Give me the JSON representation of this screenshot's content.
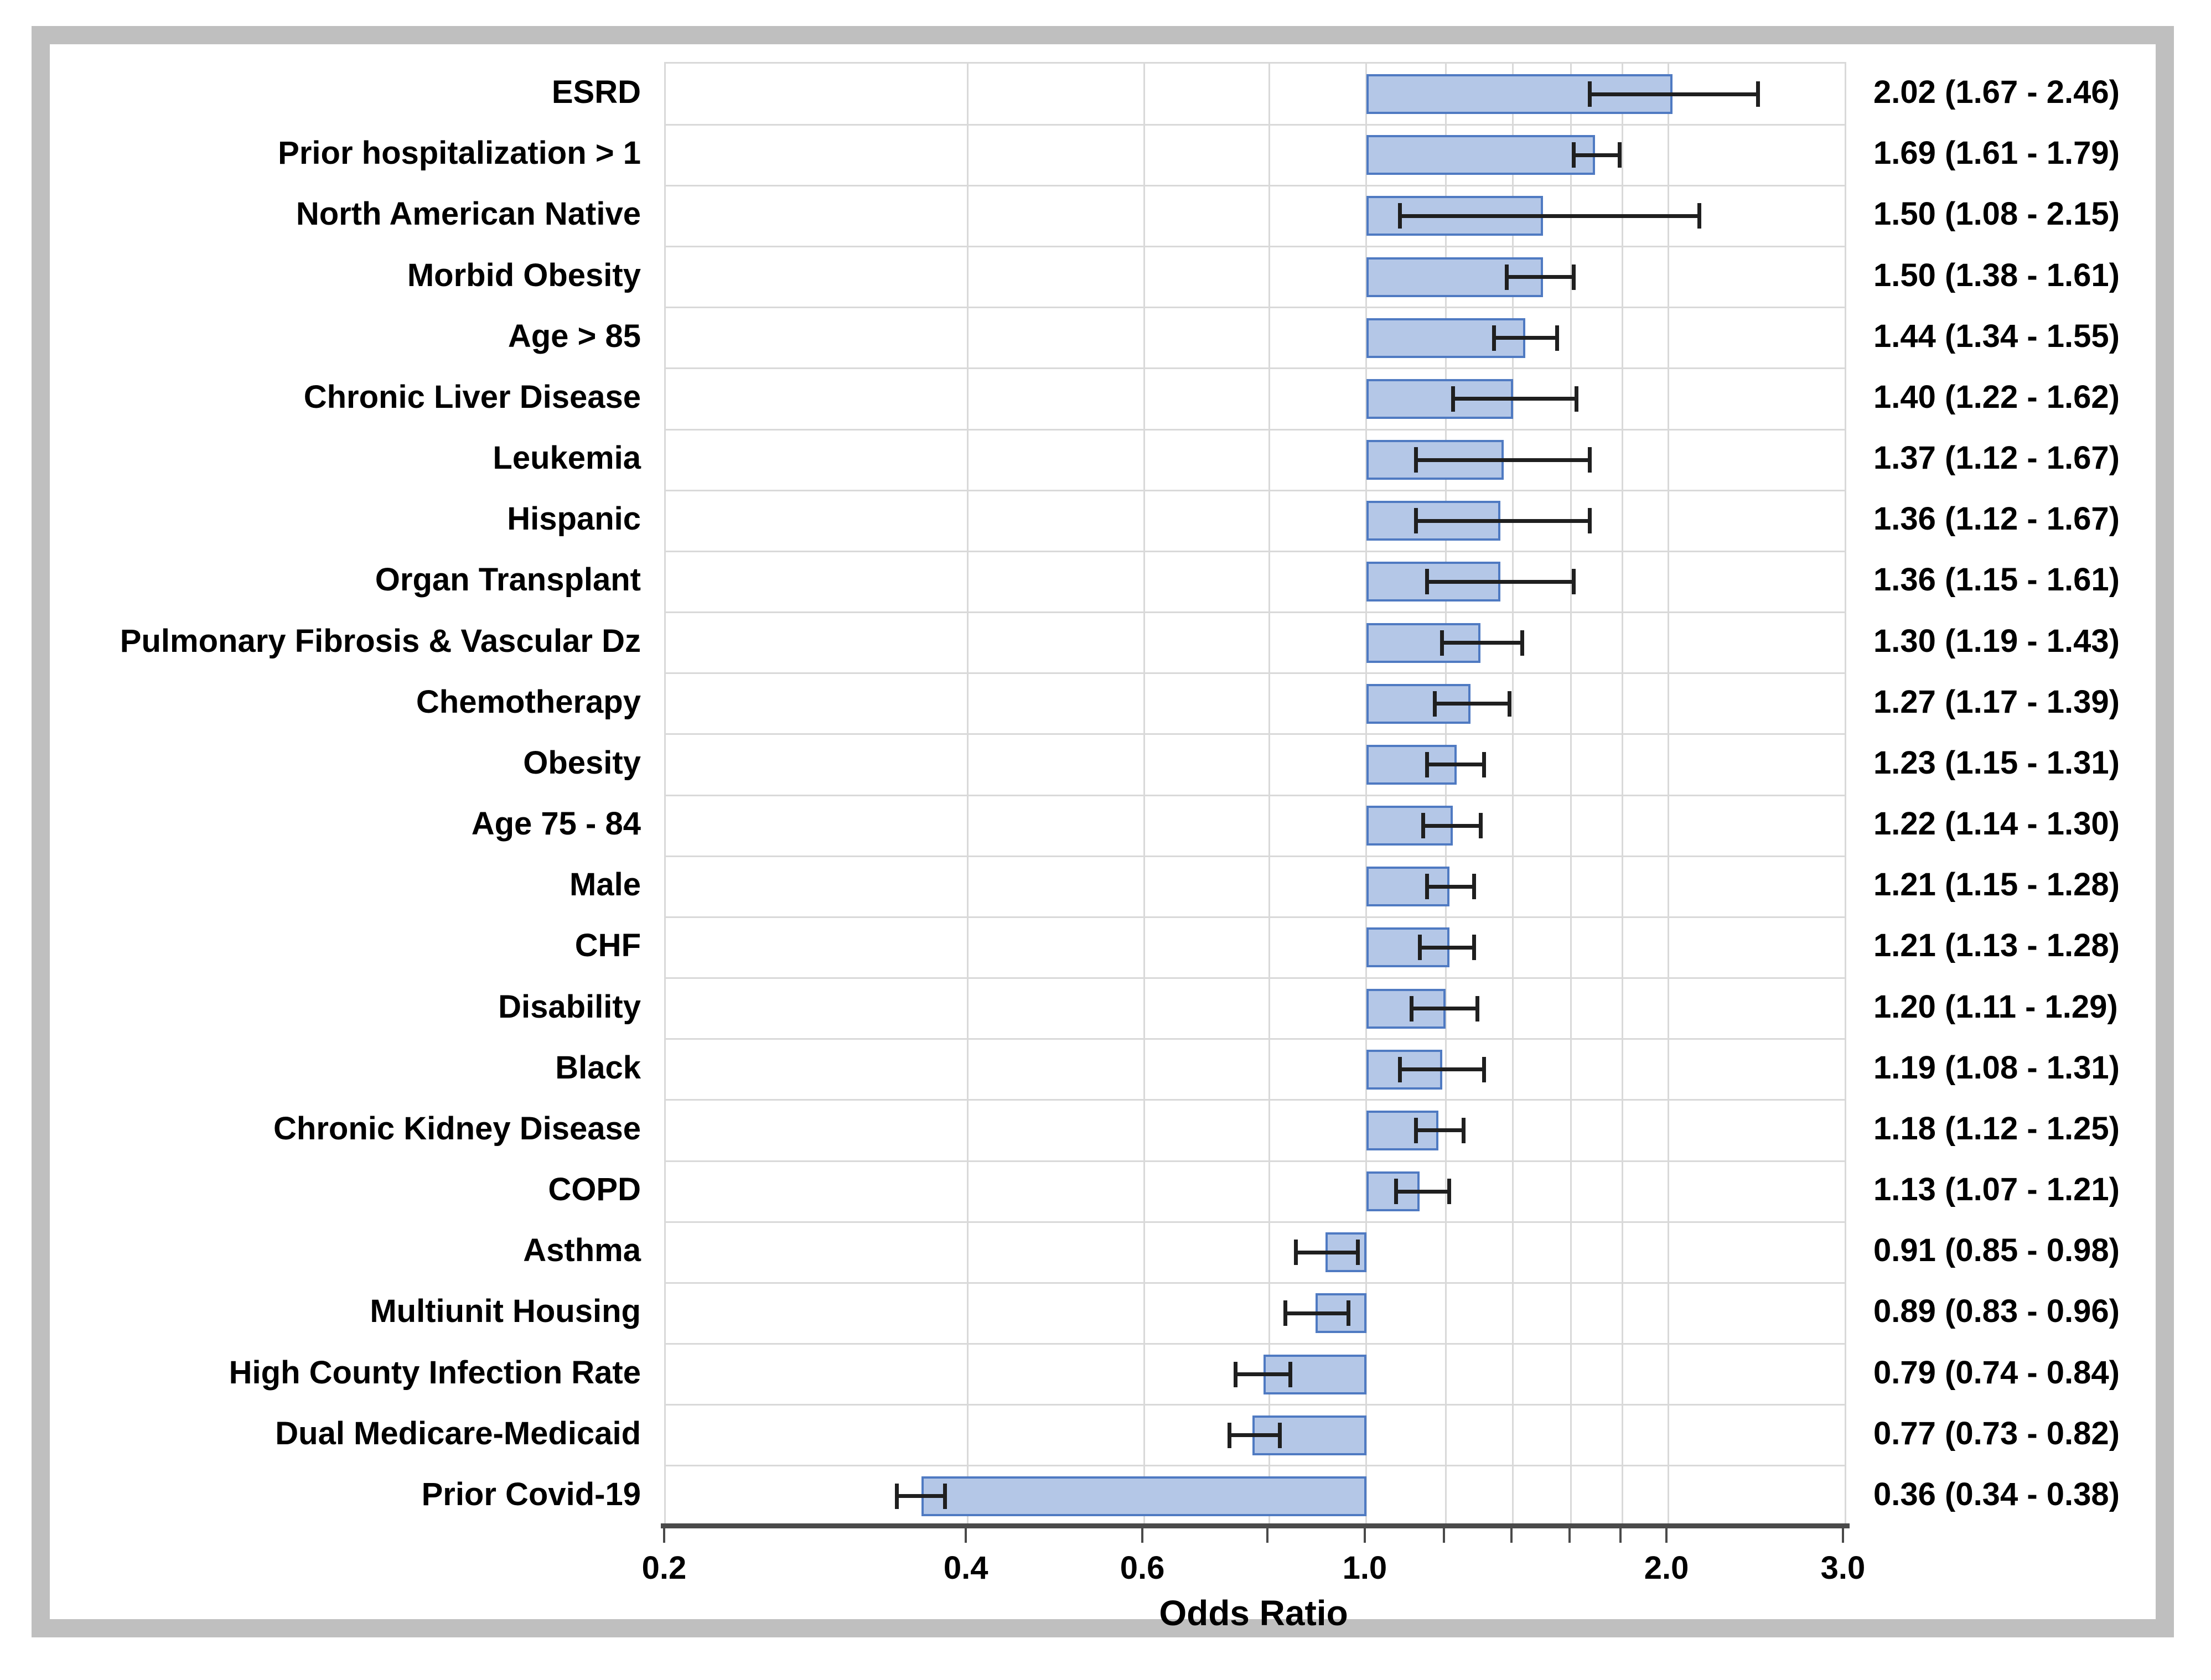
{
  "figure": {
    "background": "#ffffff",
    "frame_color": "#bfbfbf"
  },
  "colors": {
    "bar_fill": "#b4c7e7",
    "bar_border": "#4f7ac2",
    "error_bar": "#1f1f1f",
    "gridline": "#d9d9d9",
    "axis_line": "#4a4a4a",
    "text": "#000000"
  },
  "chart_data": {
    "type": "bar",
    "orientation": "horizontal",
    "title": "",
    "xlabel": "Odds Ratio",
    "x_scale": "log10",
    "xlim": [
      0.2,
      3.0
    ],
    "baseline": 1.0,
    "grid": "on",
    "legend": "none",
    "gridline_values": [
      0.4,
      0.6,
      0.8,
      1.0,
      1.2,
      1.4,
      1.6,
      1.8,
      2.0
    ],
    "axis_tick_values": [
      0.2,
      0.4,
      0.6,
      0.8,
      1.0,
      1.2,
      1.4,
      1.6,
      1.8,
      2.0,
      3.0
    ],
    "labeled_ticks": [
      {
        "value": 0.2,
        "label": "0.2"
      },
      {
        "value": 0.4,
        "label": "0.4"
      },
      {
        "value": 0.6,
        "label": "0.6"
      },
      {
        "value": 1.0,
        "label": "1.0"
      },
      {
        "value": 2.0,
        "label": "2.0"
      },
      {
        "value": 3.0,
        "label": "3.0"
      }
    ],
    "rows": [
      {
        "label": "ESRD",
        "or": 2.02,
        "ci_low": 1.67,
        "ci_high": 2.46,
        "value_text": "2.02 (1.67 - 2.46)"
      },
      {
        "label": "Prior hospitalization > 1",
        "or": 1.69,
        "ci_low": 1.61,
        "ci_high": 1.79,
        "value_text": "1.69 (1.61 - 1.79)"
      },
      {
        "label": "North American Native",
        "or": 1.5,
        "ci_low": 1.08,
        "ci_high": 2.15,
        "value_text": "1.50 (1.08 - 2.15)"
      },
      {
        "label": "Morbid Obesity",
        "or": 1.5,
        "ci_low": 1.38,
        "ci_high": 1.61,
        "value_text": "1.50 (1.38 - 1.61)"
      },
      {
        "label": "Age > 85",
        "or": 1.44,
        "ci_low": 1.34,
        "ci_high": 1.55,
        "value_text": "1.44 (1.34 - 1.55)"
      },
      {
        "label": "Chronic Liver Disease",
        "or": 1.4,
        "ci_low": 1.22,
        "ci_high": 1.62,
        "value_text": "1.40 (1.22 - 1.62)"
      },
      {
        "label": "Leukemia",
        "or": 1.37,
        "ci_low": 1.12,
        "ci_high": 1.67,
        "value_text": "1.37 (1.12 - 1.67)"
      },
      {
        "label": "Hispanic",
        "or": 1.36,
        "ci_low": 1.12,
        "ci_high": 1.67,
        "value_text": "1.36 (1.12 - 1.67)"
      },
      {
        "label": "Organ Transplant",
        "or": 1.36,
        "ci_low": 1.15,
        "ci_high": 1.61,
        "value_text": "1.36 (1.15 - 1.61)"
      },
      {
        "label": "Pulmonary Fibrosis & Vascular Dz",
        "or": 1.3,
        "ci_low": 1.19,
        "ci_high": 1.43,
        "value_text": "1.30 (1.19 - 1.43)"
      },
      {
        "label": "Chemotherapy",
        "or": 1.27,
        "ci_low": 1.17,
        "ci_high": 1.39,
        "value_text": "1.27 (1.17 - 1.39)"
      },
      {
        "label": "Obesity",
        "or": 1.23,
        "ci_low": 1.15,
        "ci_high": 1.31,
        "value_text": "1.23 (1.15 - 1.31)"
      },
      {
        "label": "Age 75 - 84",
        "or": 1.22,
        "ci_low": 1.14,
        "ci_high": 1.3,
        "value_text": "1.22 (1.14 - 1.30)"
      },
      {
        "label": "Male",
        "or": 1.21,
        "ci_low": 1.15,
        "ci_high": 1.28,
        "value_text": "1.21 (1.15 - 1.28)"
      },
      {
        "label": "CHF",
        "or": 1.21,
        "ci_low": 1.13,
        "ci_high": 1.28,
        "value_text": "1.21 (1.13 - 1.28)"
      },
      {
        "label": "Disability",
        "or": 1.2,
        "ci_low": 1.11,
        "ci_high": 1.29,
        "value_text": "1.20 (1.11 - 1.29)"
      },
      {
        "label": "Black",
        "or": 1.19,
        "ci_low": 1.08,
        "ci_high": 1.31,
        "value_text": "1.19 (1.08 - 1.31)"
      },
      {
        "label": "Chronic Kidney Disease",
        "or": 1.18,
        "ci_low": 1.12,
        "ci_high": 1.25,
        "value_text": "1.18 (1.12 - 1.25)"
      },
      {
        "label": "COPD",
        "or": 1.13,
        "ci_low": 1.07,
        "ci_high": 1.21,
        "value_text": "1.13 (1.07 - 1.21)"
      },
      {
        "label": "Asthma",
        "or": 0.91,
        "ci_low": 0.85,
        "ci_high": 0.98,
        "value_text": "0.91 (0.85 - 0.98)"
      },
      {
        "label": "Multiunit Housing",
        "or": 0.89,
        "ci_low": 0.83,
        "ci_high": 0.96,
        "value_text": "0.89 (0.83 - 0.96)"
      },
      {
        "label": "High County Infection Rate",
        "or": 0.79,
        "ci_low": 0.74,
        "ci_high": 0.84,
        "value_text": "0.79 (0.74 - 0.84)"
      },
      {
        "label": "Dual Medicare-Medicaid",
        "or": 0.77,
        "ci_low": 0.73,
        "ci_high": 0.82,
        "value_text": "0.77 (0.73 - 0.82)"
      },
      {
        "label": "Prior Covid-19",
        "or": 0.36,
        "ci_low": 0.34,
        "ci_high": 0.38,
        "value_text": "0.36 (0.34 - 0.38)"
      }
    ]
  }
}
